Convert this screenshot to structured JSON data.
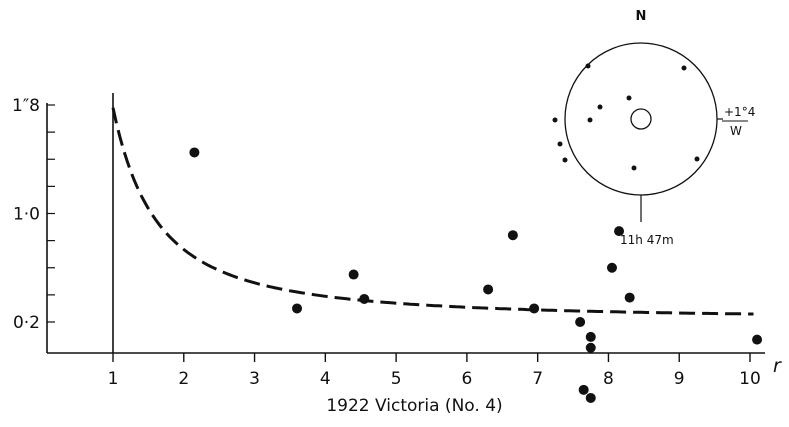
{
  "chart_data": {
    "type": "scatter",
    "caption": "1922 Victoria (No. 4)",
    "xlabel": "r",
    "xticks": [
      "1",
      "2",
      "3",
      "4",
      "5",
      "6",
      "7",
      "8",
      "9",
      "10"
    ],
    "yticks": [
      {
        "value": 1.8,
        "label": "1″8"
      },
      {
        "value": 1.0,
        "label": "1·0"
      },
      {
        "value": 0.2,
        "label": "0·2"
      }
    ],
    "xlim": [
      0,
      10.3
    ],
    "ylim": [
      0,
      2.0
    ],
    "points": [
      {
        "x": 2.15,
        "y": 1.45
      },
      {
        "x": 3.6,
        "y": 0.3
      },
      {
        "x": 4.4,
        "y": 0.55
      },
      {
        "x": 4.55,
        "y": 0.37
      },
      {
        "x": 6.3,
        "y": 0.44
      },
      {
        "x": 6.65,
        "y": 0.84
      },
      {
        "x": 6.95,
        "y": 0.3
      },
      {
        "x": 7.6,
        "y": 0.2
      },
      {
        "x": 7.75,
        "y": 0.09
      },
      {
        "x": 7.75,
        "y": 0.01
      },
      {
        "x": 7.65,
        "y": -0.3
      },
      {
        "x": 7.75,
        "y": -0.36
      },
      {
        "x": 8.05,
        "y": 0.6
      },
      {
        "x": 8.15,
        "y": 0.87
      },
      {
        "x": 8.3,
        "y": 0.38
      },
      {
        "x": 10.1,
        "y": 0.07
      }
    ],
    "curve": {
      "style": "dashed",
      "formula": "0.22 + 1.56 / r^1.6",
      "x_range": [
        1,
        10.1
      ]
    },
    "inset": {
      "north_label": "N",
      "east_label": "+1°4",
      "west_label": "W",
      "time_label": "11h 47m"
    }
  }
}
